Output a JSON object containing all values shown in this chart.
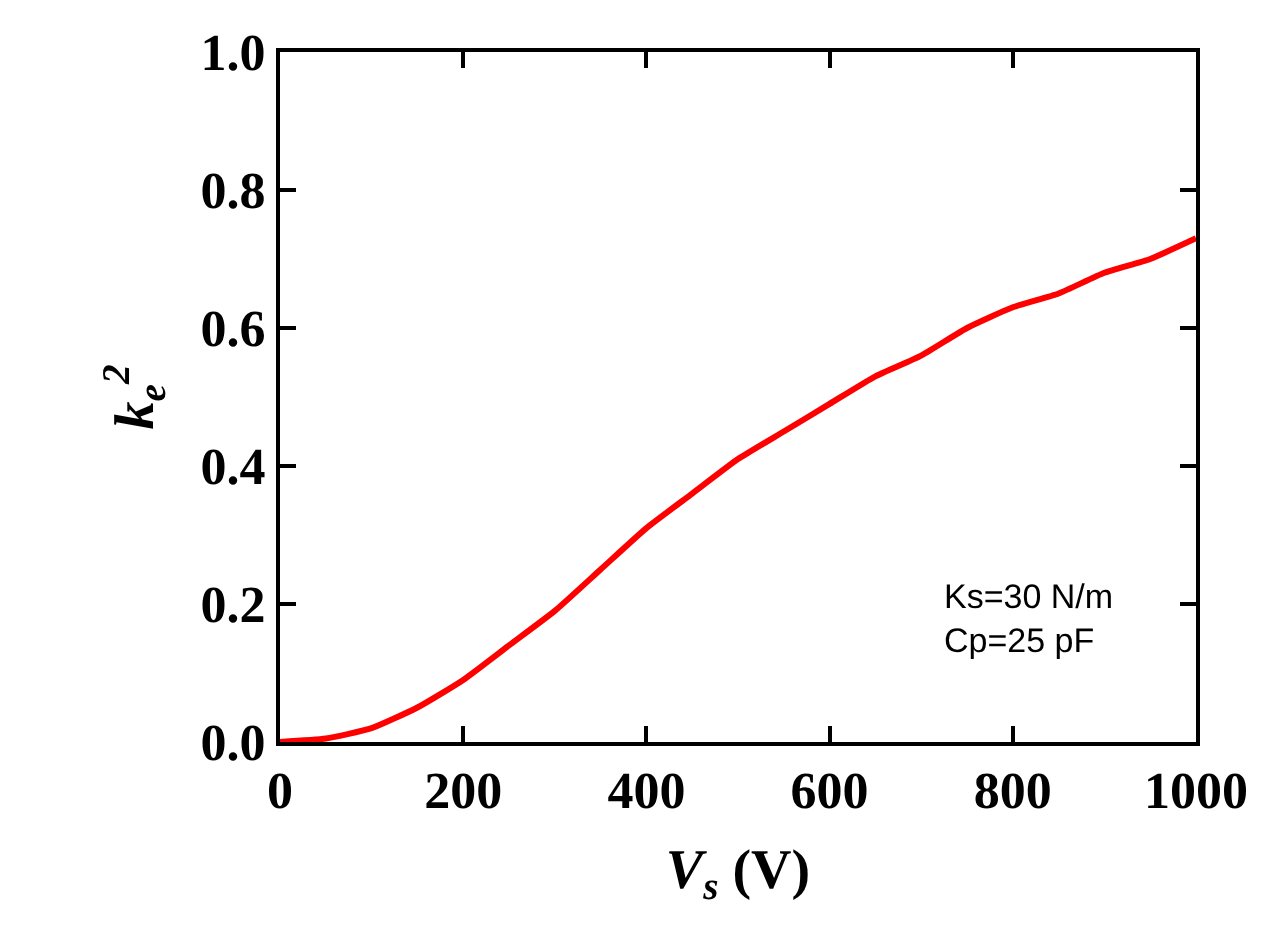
{
  "chart_data": {
    "type": "line",
    "xlabel": "V$_{s}$ (V)",
    "ylabel": "k$_{e}$$^{2}$",
    "x": [
      0,
      50,
      100,
      150,
      200,
      250,
      300,
      350,
      400,
      450,
      500,
      550,
      600,
      650,
      700,
      750,
      800,
      850,
      900,
      950,
      1000
    ],
    "series": [
      {
        "color": "#ff0000",
        "values": [
          0,
          0.005,
          0.02,
          0.05,
          0.09,
          0.14,
          0.19,
          0.25,
          0.31,
          0.36,
          0.41,
          0.45,
          0.49,
          0.53,
          0.56,
          0.6,
          0.63,
          0.65,
          0.68,
          0.7,
          0.73
        ]
      }
    ],
    "xlim": [
      0,
      1000
    ],
    "xticks": [
      0,
      200,
      400,
      600,
      800,
      1000
    ],
    "ylim": [
      0,
      1.0
    ],
    "yticks": [
      {
        "value": 0,
        "label": "0.0"
      },
      0.2,
      0.4,
      0.6,
      0.8,
      {
        "value": 1.0,
        "label": "1.0"
      }
    ],
    "annotations": [
      "Ks=30 N/m",
      "Cp=25 pF"
    ],
    "marker": "none",
    "line_style": "solid"
  }
}
